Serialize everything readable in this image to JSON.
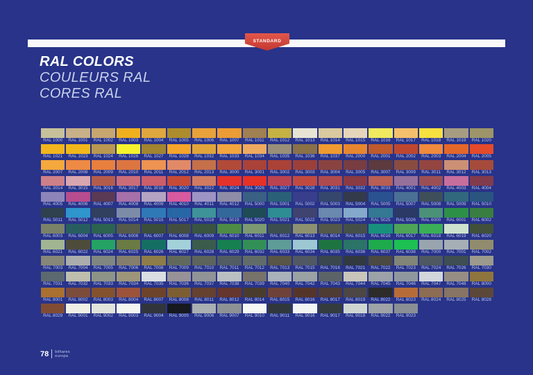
{
  "page": {
    "background": "#283389"
  },
  "header": {
    "ribbon_label": "STANDARD",
    "ribbon_color": "#D8453E",
    "bar_color": "#F8F8F8"
  },
  "titles": {
    "en": "RAL COLORS",
    "fr": "COULEURS RAL",
    "pt": "CORES RAL"
  },
  "footer": {
    "page_number": "78",
    "brand_line1": "bilhares",
    "brand_line2": "europa"
  },
  "grid": {
    "rows": [
      [
        {
          "code": "RAL 1000",
          "hex": "#C6C19B"
        },
        {
          "code": "RAL 1001",
          "hex": "#C8B088"
        },
        {
          "code": "RAL 1002",
          "hex": "#C8A66F"
        },
        {
          "code": "RAL 1003",
          "hex": "#F0B01E"
        },
        {
          "code": "RAL 1004",
          "hex": "#E0A73E"
        },
        {
          "code": "RAL 1005",
          "hex": "#AD8C2D"
        },
        {
          "code": "RAL 1006",
          "hex": "#E9A23A"
        },
        {
          "code": "RAL 1007",
          "hex": "#EC9C34"
        },
        {
          "code": "RAL 1011",
          "hex": "#A07F51"
        },
        {
          "code": "RAL 1012",
          "hex": "#C6B143"
        },
        {
          "code": "RAL 1013",
          "hex": "#E7E4D4"
        },
        {
          "code": "RAL 1014",
          "hex": "#DACA9F"
        },
        {
          "code": "RAL 1015",
          "hex": "#E5D6BB"
        },
        {
          "code": "RAL 1016",
          "hex": "#F0EA5F"
        },
        {
          "code": "RAL 1017",
          "hex": "#F4C06B"
        },
        {
          "code": "RAL 1018",
          "hex": "#F7E13F"
        },
        {
          "code": "RAL 1019",
          "hex": "#A69C82"
        },
        {
          "code": "RAL 1020",
          "hex": "#9D9569"
        }
      ],
      [
        {
          "code": "RAL 1021",
          "hex": "#F2B51D"
        },
        {
          "code": "RAL 1023",
          "hex": "#F2B71B"
        },
        {
          "code": "RAL 1024",
          "hex": "#BA9851"
        },
        {
          "code": "RAL 1026",
          "hex": "#F6F22C"
        },
        {
          "code": "RAL 1027",
          "hex": "#A28431"
        },
        {
          "code": "RAL 1028",
          "hex": "#F5A52A"
        },
        {
          "code": "RAL 1032",
          "hex": "#E0A43B"
        },
        {
          "code": "RAL 1033",
          "hex": "#F3A53E"
        },
        {
          "code": "RAL 1034",
          "hex": "#EFAA60"
        },
        {
          "code": "RAL 1035",
          "hex": "#998F78"
        },
        {
          "code": "RAL 1036",
          "hex": "#8A7148"
        },
        {
          "code": "RAL 1037",
          "hex": "#F09B2F"
        },
        {
          "code": "RAL 2000",
          "hex": "#E8862F"
        },
        {
          "code": "RAL 2001",
          "hex": "#BF5A2D"
        },
        {
          "code": "RAL 2002",
          "hex": "#BF4730"
        },
        {
          "code": "RAL 2003",
          "hex": "#F08A3C"
        },
        {
          "code": "RAL 2004",
          "hex": "#E4672A"
        },
        {
          "code": "RAL 2005",
          "hex": "#E54A2B"
        }
      ],
      [
        {
          "code": "RAL 2007",
          "hex": "#F5A83C"
        },
        {
          "code": "RAL 2008",
          "hex": "#EE8A44"
        },
        {
          "code": "RAL 2009",
          "hex": "#E87F3D"
        },
        {
          "code": "RAL 2010",
          "hex": "#DD7540"
        },
        {
          "code": "RAL 2011",
          "hex": "#EE9351"
        },
        {
          "code": "RAL 2012",
          "hex": "#E28A67"
        },
        {
          "code": "RAL 2013",
          "hex": "#C57049"
        },
        {
          "code": "RAL 3000",
          "hex": "#B24A38"
        },
        {
          "code": "RAL 3001",
          "hex": "#AA4238"
        },
        {
          "code": "RAL 3002",
          "hex": "#AB4237"
        },
        {
          "code": "RAL 3003",
          "hex": "#9C3F39"
        },
        {
          "code": "RAL 3004",
          "hex": "#8A4340"
        },
        {
          "code": "RAL 3005",
          "hex": "#783D40"
        },
        {
          "code": "RAL 3007",
          "hex": "#5C3A3E"
        },
        {
          "code": "RAL 3009",
          "hex": "#8A4C40"
        },
        {
          "code": "RAL 3011",
          "hex": "#94453F"
        },
        {
          "code": "RAL 3012",
          "hex": "#CC9075"
        },
        {
          "code": "RAL 3013",
          "hex": "#A64B3B"
        }
      ],
      [
        {
          "code": "RAL 3014",
          "hex": "#CD8088"
        },
        {
          "code": "RAL 3015",
          "hex": "#D8A6AE"
        },
        {
          "code": "RAL 3016",
          "hex": "#B45C4B"
        },
        {
          "code": "RAL 3017",
          "hex": "#CB6D78"
        },
        {
          "code": "RAL 3018",
          "hex": "#CB5E68"
        },
        {
          "code": "RAL 3020",
          "hex": "#C74A36"
        },
        {
          "code": "RAL 3022",
          "hex": "#D17A60"
        },
        {
          "code": "RAL 3024",
          "hex": "#E5322A"
        },
        {
          "code": "RAL 3026",
          "hex": "#E63126"
        },
        {
          "code": "RAL 3027",
          "hex": "#BB4350"
        },
        {
          "code": "RAL 3028",
          "hex": "#C04A40"
        },
        {
          "code": "RAL 3031",
          "hex": "#AF4A4D"
        },
        {
          "code": "RAL 3032",
          "hex": "#8A3A42"
        },
        {
          "code": "RAL 3033",
          "hex": "#B95E53"
        },
        {
          "code": "RAL 4001",
          "hex": "#95709A"
        },
        {
          "code": "RAL 4002",
          "hex": "#9B4F54"
        },
        {
          "code": "RAL 4003",
          "hex": "#C76E9D"
        },
        {
          "code": "RAL 4004",
          "hex": "#823B4D"
        }
      ],
      [
        {
          "code": "RAL 4005",
          "hex": "#8D85B9"
        },
        {
          "code": "RAL 4006",
          "hex": "#B74C8E"
        },
        {
          "code": "RAL 4007",
          "hex": "#5A3A55"
        },
        {
          "code": "RAL 4008",
          "hex": "#A770A9"
        },
        {
          "code": "RAL 4009",
          "hex": "#B4A3C1"
        },
        {
          "code": "RAL 4010",
          "hex": "#D75A9E"
        },
        {
          "code": "RAL 4011",
          "hex": "#9E94C4"
        },
        {
          "code": "RAL 4012",
          "hex": "#8F8DA6"
        },
        {
          "code": "RAL 5000",
          "hex": "#3A6084"
        },
        {
          "code": "RAL 5001",
          "hex": "#2A6178"
        },
        {
          "code": "RAL 5002",
          "hex": "#383E8C"
        },
        {
          "code": "RAL 5003",
          "hex": "#35476C"
        },
        {
          "code": "RAL 5004",
          "hex": "#333A4A"
        },
        {
          "code": "RAL 5005",
          "hex": "#2A5290"
        },
        {
          "code": "RAL 5007",
          "hex": "#4A7096"
        },
        {
          "code": "RAL 5008",
          "hex": "#3F4F5A"
        },
        {
          "code": "RAL 5009",
          "hex": "#32687E"
        },
        {
          "code": "RAL 5010",
          "hex": "#29557F"
        }
      ],
      [
        {
          "code": "RAL 5011",
          "hex": "#2F404F"
        },
        {
          "code": "RAL 5012",
          "hex": "#2E96CC"
        },
        {
          "code": "RAL 5013",
          "hex": "#31405E"
        },
        {
          "code": "RAL 5014",
          "hex": "#7C8CA8"
        },
        {
          "code": "RAL 5015",
          "hex": "#2F7AB6"
        },
        {
          "code": "RAL 5017",
          "hex": "#2767A6"
        },
        {
          "code": "RAL 5018",
          "hex": "#3E9398"
        },
        {
          "code": "RAL 5019",
          "hex": "#33689A"
        },
        {
          "code": "RAL 5020",
          "hex": "#1E4B55"
        },
        {
          "code": "RAL 5021",
          "hex": "#2E8D93"
        },
        {
          "code": "RAL 5022",
          "hex": "#3E4370"
        },
        {
          "code": "RAL 5023",
          "hex": "#6B88AF"
        },
        {
          "code": "RAL 5024",
          "hex": "#84A9CA"
        },
        {
          "code": "RAL 5025",
          "hex": "#347894"
        },
        {
          "code": "RAL 5026",
          "hex": "#2A3966"
        },
        {
          "code": "RAL 6000",
          "hex": "#4B9177"
        },
        {
          "code": "RAL 6001",
          "hex": "#2D9047"
        },
        {
          "code": "RAL 6002",
          "hex": "#397E41"
        }
      ],
      [
        {
          "code": "RAL 6003",
          "hex": "#7A8268"
        },
        {
          "code": "RAL 6004",
          "hex": "#295E61"
        },
        {
          "code": "RAL 6005",
          "hex": "#2C6350"
        },
        {
          "code": "RAL 6006",
          "hex": "#555B4A"
        },
        {
          "code": "RAL 6007",
          "hex": "#3B4E3B"
        },
        {
          "code": "RAL 6008",
          "hex": "#444E40"
        },
        {
          "code": "RAL 6009",
          "hex": "#395440"
        },
        {
          "code": "RAL 6010",
          "hex": "#4E8B45"
        },
        {
          "code": "RAL 6011",
          "hex": "#7B9A71"
        },
        {
          "code": "RAL 6012",
          "hex": "#3D4E51"
        },
        {
          "code": "RAL 6013",
          "hex": "#8D9170"
        },
        {
          "code": "RAL 6014",
          "hex": "#54584A"
        },
        {
          "code": "RAL 6015",
          "hex": "#454F49"
        },
        {
          "code": "RAL 6016",
          "hex": "#18917C"
        },
        {
          "code": "RAL 6017",
          "hex": "#4DA457"
        },
        {
          "code": "RAL 6018",
          "hex": "#3AAF57"
        },
        {
          "code": "RAL 6019",
          "hex": "#CDE3CD"
        },
        {
          "code": "RAL 6020",
          "hex": "#41503B"
        }
      ],
      [
        {
          "code": "RAL 6021",
          "hex": "#A1B593"
        },
        {
          "code": "RAL 6022",
          "hex": "#4D4C3A"
        },
        {
          "code": "RAL 6024",
          "hex": "#24A364"
        },
        {
          "code": "RAL 6025",
          "hex": "#6A7B43"
        },
        {
          "code": "RAL 6026",
          "hex": "#146F62"
        },
        {
          "code": "RAL 6027",
          "hex": "#A3D1D9"
        },
        {
          "code": "RAL 6028",
          "hex": "#3B5B4C"
        },
        {
          "code": "RAL 6029",
          "hex": "#178050"
        },
        {
          "code": "RAL 6032",
          "hex": "#329057"
        },
        {
          "code": "RAL 6033",
          "hex": "#5E9C98"
        },
        {
          "code": "RAL 6034",
          "hex": "#9CC7D3"
        },
        {
          "code": "RAL 6035",
          "hex": "#1E7441"
        },
        {
          "code": "RAL 6036",
          "hex": "#2B7467"
        },
        {
          "code": "RAL 6037",
          "hex": "#1EAB4B"
        },
        {
          "code": "RAL 6038",
          "hex": "#1CC152"
        },
        {
          "code": "RAL 7000",
          "hex": "#99A5AE"
        },
        {
          "code": "RAL 7001",
          "hex": "#A6AFB6"
        },
        {
          "code": "RAL 7002",
          "hex": "#918C6E"
        }
      ],
      [
        {
          "code": "RAL 7003",
          "hex": "#868779"
        },
        {
          "code": "RAL 7004",
          "hex": "#ABADAC"
        },
        {
          "code": "RAL 7005",
          "hex": "#808680"
        },
        {
          "code": "RAL 7006",
          "hex": "#867E6C"
        },
        {
          "code": "RAL 7008",
          "hex": "#8D7D48"
        },
        {
          "code": "RAL 7009",
          "hex": "#61695C"
        },
        {
          "code": "RAL 7010",
          "hex": "#5D645C"
        },
        {
          "code": "RAL 7011",
          "hex": "#515D63"
        },
        {
          "code": "RAL 7012",
          "hex": "#616C68"
        },
        {
          "code": "RAL 7013",
          "hex": "#595547"
        },
        {
          "code": "RAL 7015",
          "hex": "#505863"
        },
        {
          "code": "RAL 7016",
          "hex": "#3A474E"
        },
        {
          "code": "RAL 7021",
          "hex": "#323A40"
        },
        {
          "code": "RAL 7022",
          "hex": "#4A4A42"
        },
        {
          "code": "RAL 7023",
          "hex": "#818577"
        },
        {
          "code": "RAL 7024",
          "hex": "#4E5861"
        },
        {
          "code": "RAL 7026",
          "hex": "#3E4E52"
        },
        {
          "code": "RAL 7030",
          "hex": "#9C9A8D"
        }
      ],
      [
        {
          "code": "RAL 7031",
          "hex": "#5C6970"
        },
        {
          "code": "RAL 7032",
          "hex": "#BEBEAE"
        },
        {
          "code": "RAL 7033",
          "hex": "#8D9487"
        },
        {
          "code": "RAL 7034",
          "hex": "#9D967A"
        },
        {
          "code": "RAL 7035",
          "hex": "#D8DEE2"
        },
        {
          "code": "RAL 7036",
          "hex": "#979297"
        },
        {
          "code": "RAL 7037",
          "hex": "#909496"
        },
        {
          "code": "RAL 7038",
          "hex": "#BAC0C2"
        },
        {
          "code": "RAL 7039",
          "hex": "#77726A"
        },
        {
          "code": "RAL 7040",
          "hex": "#A9B1BA"
        },
        {
          "code": "RAL 7042",
          "hex": "#9BA2A4"
        },
        {
          "code": "RAL 7043",
          "hex": "#5C6468"
        },
        {
          "code": "RAL 7044",
          "hex": "#C8C6BA"
        },
        {
          "code": "RAL 7045",
          "hex": "#9CA2A8"
        },
        {
          "code": "RAL 7046",
          "hex": "#8F979E"
        },
        {
          "code": "RAL 7047",
          "hex": "#D2D7DC"
        },
        {
          "code": "RAL 7048",
          "hex": "#968E84"
        },
        {
          "code": "RAL 8000",
          "hex": "#8E753E"
        }
      ],
      [
        {
          "code": "RAL 8001",
          "hex": "#AA7030"
        },
        {
          "code": "RAL 8002",
          "hex": "#7C4C3B"
        },
        {
          "code": "RAL 8003",
          "hex": "#84522C"
        },
        {
          "code": "RAL 8004",
          "hex": "#9C5339"
        },
        {
          "code": "RAL 8007",
          "hex": "#6D442A"
        },
        {
          "code": "RAL 8008",
          "hex": "#7D5E32"
        },
        {
          "code": "RAL 8011",
          "hex": "#654130"
        },
        {
          "code": "RAL 8012",
          "hex": "#65362E"
        },
        {
          "code": "RAL 8014",
          "hex": "#493C2C"
        },
        {
          "code": "RAL 8015",
          "hex": "#6E4238"
        },
        {
          "code": "RAL 8016",
          "hex": "#55352A"
        },
        {
          "code": "RAL 8017",
          "hex": "#4E3B34"
        },
        {
          "code": "RAL 8019",
          "hex": "#4C4645"
        },
        {
          "code": "RAL 8022",
          "hex": "#2C2C2A"
        },
        {
          "code": "RAL 8023",
          "hex": "#B76C38"
        },
        {
          "code": "RAL 8024",
          "hex": "#8C6C52"
        },
        {
          "code": "RAL 8025",
          "hex": "#877464"
        },
        {
          "code": "RAL 8028",
          "hex": "#5C4839"
        }
      ],
      [
        {
          "code": "RAL 8029",
          "hex": "#814C34"
        },
        {
          "code": "RAL 9001",
          "hex": "#F0F0E6"
        },
        {
          "code": "RAL 9002",
          "hex": "#E0E4DA"
        },
        {
          "code": "RAL 9003",
          "hex": "#F3F5F1"
        },
        {
          "code": "RAL 9004",
          "hex": "#31353B"
        },
        {
          "code": "RAL 9005",
          "hex": "#16191E"
        },
        {
          "code": "RAL 9006",
          "hex": "#AAAFB2"
        },
        {
          "code": "RAL 9007",
          "hex": "#8E9295"
        },
        {
          "code": "RAL 9010",
          "hex": "#F6F8F3"
        },
        {
          "code": "RAL 9011",
          "hex": "#30383D"
        },
        {
          "code": "RAL 9016",
          "hex": "#F2F5F2"
        },
        {
          "code": "RAL 9017",
          "hex": "#343C40"
        },
        {
          "code": "RAL 9018",
          "hex": "#CFD6D2"
        },
        {
          "code": "RAL 9022",
          "hex": "#9DA3A6"
        },
        {
          "code": "RAL 9023",
          "hex": "#898F94"
        }
      ]
    ]
  }
}
